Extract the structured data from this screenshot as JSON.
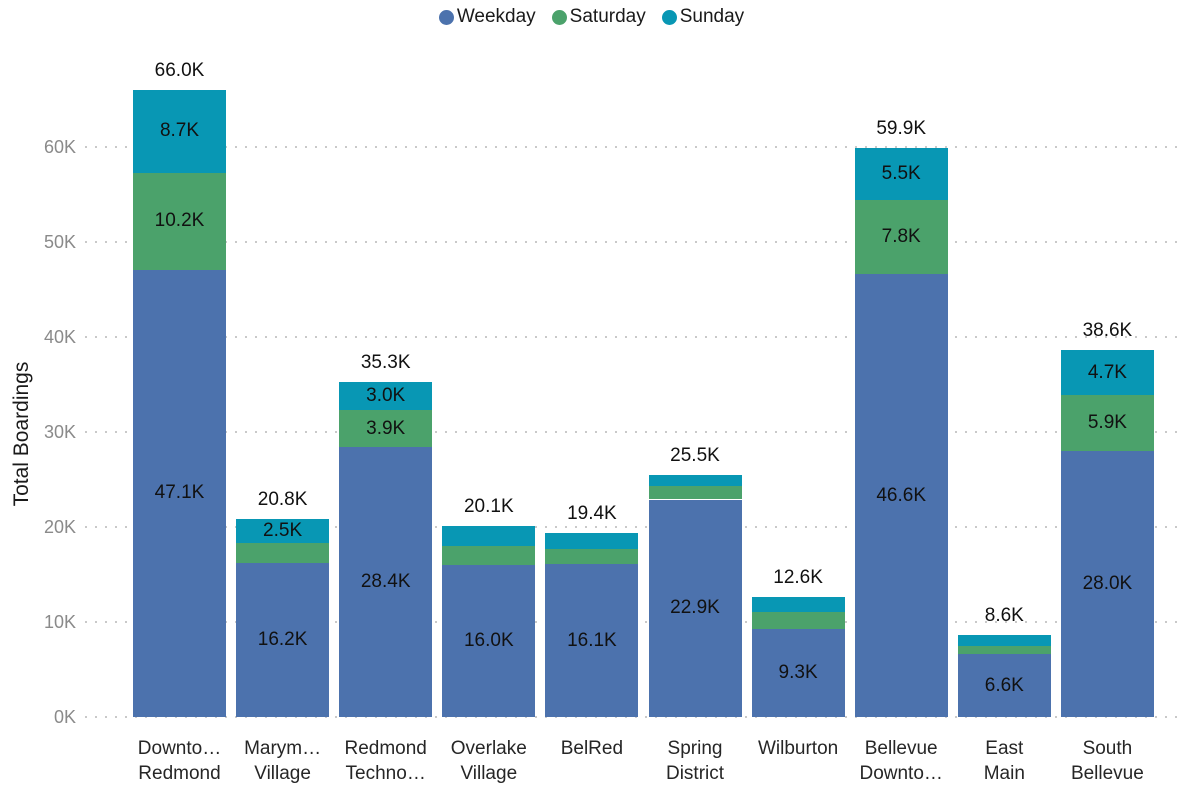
{
  "chart_data": {
    "type": "bar",
    "stacked": true,
    "title": "",
    "xlabel": "",
    "ylabel": "Total Boardings",
    "y_unit": "K",
    "ylim": [
      0,
      68
    ],
    "ytick_values": [
      0,
      10,
      20,
      30,
      40,
      50,
      60
    ],
    "ytick_labels": [
      "0K",
      "10K",
      "20K",
      "30K",
      "40K",
      "50K",
      "60K"
    ],
    "grid": "dotted-horizontal",
    "legend_position": "top-center",
    "categories": [
      [
        "Downto…",
        "Redmond"
      ],
      [
        "Marym…",
        "Village"
      ],
      [
        "Redmond",
        "Techno…"
      ],
      [
        "Overlake",
        "Village"
      ],
      [
        "BelRed"
      ],
      [
        "Spring",
        "District"
      ],
      [
        "Wilburton"
      ],
      [
        "Bellevue",
        "Downto…"
      ],
      [
        "East",
        "Main"
      ],
      [
        "South",
        "Bellevue"
      ]
    ],
    "series": [
      {
        "name": "Weekday",
        "color": "#4c72ad",
        "values": [
          47.1,
          16.2,
          28.4,
          16.0,
          16.1,
          22.9,
          9.3,
          46.6,
          6.6,
          28.0
        ],
        "labels": [
          "47.1K",
          "16.2K",
          "28.4K",
          "16.0K",
          "16.1K",
          "22.9K",
          "9.3K",
          "46.6K",
          "6.6K",
          "28.0K"
        ]
      },
      {
        "name": "Saturday",
        "color": "#4ba26b",
        "values": [
          10.2,
          2.1,
          3.9,
          2.0,
          1.6,
          1.4,
          1.8,
          7.8,
          0.9,
          5.9
        ],
        "labels": [
          "10.2K",
          "",
          "3.9K",
          "",
          "",
          "",
          "",
          "7.8K",
          "",
          "5.9K"
        ]
      },
      {
        "name": "Sunday",
        "color": "#0897b4",
        "values": [
          8.7,
          2.5,
          3.0,
          2.1,
          1.7,
          1.2,
          1.5,
          5.5,
          1.1,
          4.7
        ],
        "labels": [
          "8.7K",
          "2.5K",
          "3.0K",
          "",
          "",
          "",
          "",
          "5.5K",
          "",
          "4.7K"
        ]
      }
    ],
    "totals": [
      "66.0K",
      "20.8K",
      "35.3K",
      "20.1K",
      "19.4K",
      "25.5K",
      "12.6K",
      "59.9K",
      "8.6K",
      "38.6K"
    ],
    "colors": {
      "background": "#ffffff",
      "grid": "#c9c9c9",
      "ytick_label": "#8a8a8a",
      "xtick_label": "#262626",
      "value_label": "#111111",
      "axis_title": "#1a1a1a"
    }
  }
}
